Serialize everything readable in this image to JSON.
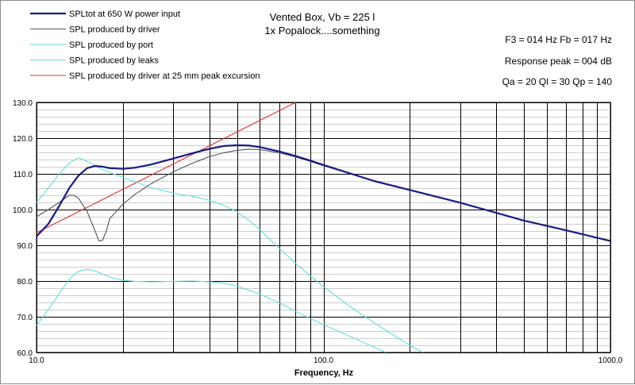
{
  "title": {
    "line1": "Vented Box, Vb = 225 l",
    "line2": "1x Popalock....something"
  },
  "info": {
    "f3_fb": "F3 = 014  Hz  Fb = 017  Hz",
    "response_peak": "Response peak = 004  dB",
    "q_values": "Qa = 20   Ql = 30   Qp = 140"
  },
  "colors": {
    "total": "#1a1a80",
    "driver": "#555555",
    "port": "#66dddd",
    "leaks": "#66dddd",
    "excursion": "#e03030",
    "grid": "#000000",
    "plot_bg": "#ffffff"
  },
  "chart_data": {
    "type": "line",
    "title": "Vented Box, Vb = 225 l",
    "subtitle": "1x Popalock....something",
    "xlabel": "Frequency, Hz",
    "ylabel": "",
    "x_scale": "log",
    "xlim": [
      10,
      1000
    ],
    "ylim": [
      60,
      130
    ],
    "grid": true,
    "legend_position": "top-left",
    "x_tick_labels": [
      "10.0",
      "100.0",
      "1000.0"
    ],
    "y_tick_labels": [
      "60.0",
      "70.0",
      "80.0",
      "90.0",
      "100.0",
      "110.0",
      "120.0",
      "130.0"
    ],
    "series": [
      {
        "name": "SPLtot at 650 W power input",
        "color_key": "total",
        "points": [
          [
            10,
            92.5
          ],
          [
            11,
            96
          ],
          [
            12,
            101
          ],
          [
            13,
            106
          ],
          [
            14,
            109.5
          ],
          [
            15,
            111.6
          ],
          [
            16,
            112.2
          ],
          [
            17,
            112.0
          ],
          [
            18,
            111.6
          ],
          [
            20,
            111.4
          ],
          [
            22,
            111.7
          ],
          [
            25,
            112.6
          ],
          [
            30,
            114.3
          ],
          [
            35,
            115.8
          ],
          [
            40,
            117.0
          ],
          [
            45,
            117.8
          ],
          [
            50,
            118.0
          ],
          [
            55,
            117.9
          ],
          [
            60,
            117.5
          ],
          [
            70,
            116.3
          ],
          [
            80,
            115.0
          ],
          [
            90,
            113.7
          ],
          [
            100,
            112.5
          ],
          [
            150,
            108.0
          ],
          [
            200,
            105.5
          ],
          [
            300,
            101.9
          ],
          [
            500,
            96.9
          ],
          [
            700,
            94.2
          ],
          [
            1000,
            91.2
          ]
        ]
      },
      {
        "name": "SPL produced by driver",
        "color_key": "driver",
        "points": [
          [
            10,
            98
          ],
          [
            11,
            100
          ],
          [
            12,
            102
          ],
          [
            13,
            104
          ],
          [
            13.5,
            104
          ],
          [
            14,
            103.2
          ],
          [
            15,
            99.5
          ],
          [
            16,
            94
          ],
          [
            16.5,
            91.2
          ],
          [
            17,
            91.4
          ],
          [
            17.5,
            94
          ],
          [
            18,
            97.5
          ],
          [
            20,
            101.5
          ],
          [
            22,
            104.2
          ],
          [
            25,
            107.2
          ],
          [
            30,
            110.6
          ],
          [
            35,
            113.0
          ],
          [
            40,
            114.8
          ],
          [
            45,
            115.9
          ],
          [
            50,
            116.6
          ],
          [
            55,
            116.9
          ],
          [
            60,
            116.8
          ],
          [
            70,
            115.9
          ],
          [
            80,
            114.7
          ],
          [
            90,
            113.5
          ],
          [
            100,
            112.3
          ],
          [
            150,
            108.0
          ],
          [
            200,
            105.5
          ],
          [
            300,
            101.9
          ],
          [
            500,
            96.9
          ],
          [
            700,
            94.2
          ],
          [
            1000,
            91.2
          ]
        ]
      },
      {
        "name": "SPL produced by port",
        "color_key": "port",
        "points": [
          [
            10,
            102
          ],
          [
            11,
            106
          ],
          [
            12,
            110
          ],
          [
            13,
            113
          ],
          [
            14,
            114.5
          ],
          [
            15,
            113.5
          ],
          [
            16,
            112.3
          ],
          [
            17,
            111.2
          ],
          [
            18,
            110.4
          ],
          [
            20,
            109.0
          ],
          [
            25,
            106.2
          ],
          [
            30,
            104.6
          ],
          [
            35,
            103.7
          ],
          [
            40,
            102.6
          ],
          [
            45,
            101.2
          ],
          [
            50,
            99.3
          ],
          [
            55,
            97.0
          ],
          [
            60,
            94.4
          ],
          [
            70,
            89.2
          ],
          [
            80,
            85.0
          ],
          [
            90,
            81.4
          ],
          [
            100,
            78.5
          ],
          [
            120,
            73.6
          ],
          [
            150,
            68.3
          ],
          [
            200,
            62.0
          ],
          [
            240,
            58.5
          ]
        ]
      },
      {
        "name": "SPL produced by leaks",
        "color_key": "leaks",
        "points": [
          [
            10,
            67.5
          ],
          [
            11,
            72
          ],
          [
            12,
            76.5
          ],
          [
            13,
            80.5
          ],
          [
            14,
            82.7
          ],
          [
            15,
            83.3
          ],
          [
            16,
            82.8
          ],
          [
            17,
            81.9
          ],
          [
            18,
            81.1
          ],
          [
            20,
            80.2
          ],
          [
            22,
            79.9
          ],
          [
            25,
            79.8
          ],
          [
            30,
            79.9
          ],
          [
            35,
            80.0
          ],
          [
            40,
            79.8
          ],
          [
            45,
            79.4
          ],
          [
            50,
            78.6
          ],
          [
            60,
            76.3
          ],
          [
            70,
            73.9
          ],
          [
            80,
            71.5
          ],
          [
            90,
            69.5
          ],
          [
            100,
            67.8
          ],
          [
            120,
            65.0
          ],
          [
            150,
            61.5
          ],
          [
            170,
            59.5
          ]
        ]
      },
      {
        "name": "SPL produced by driver at 25 mm peak excursion",
        "color_key": "excursion",
        "points": [
          [
            10,
            93.5
          ],
          [
            80,
            130
          ]
        ]
      }
    ]
  }
}
